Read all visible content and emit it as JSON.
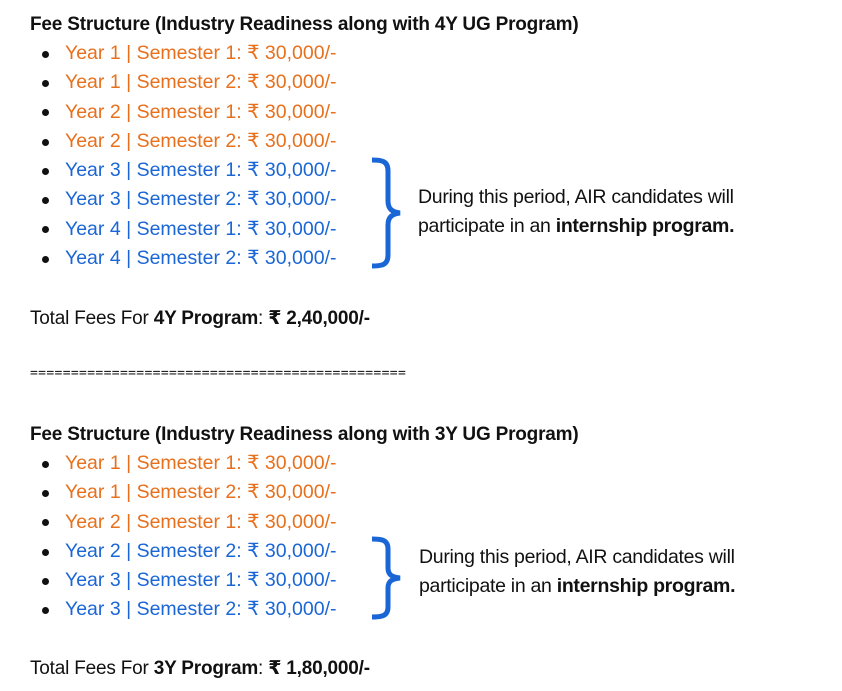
{
  "section1": {
    "title": "Fee Structure (Industry Readiness along with 4Y UG Program)",
    "items": [
      {
        "label": "Year 1 | Semester 1:  ₹ 30,000/-",
        "color": "orange"
      },
      {
        "label": "Year 1 | Semester 2:  ₹ 30,000/-",
        "color": "orange"
      },
      {
        "label": "Year 2 | Semester 1:  ₹ 30,000/-",
        "color": "orange"
      },
      {
        "label": "Year 2 | Semester 2:  ₹ 30,000/-",
        "color": "orange"
      },
      {
        "label": "Year 3 | Semester 1:  ₹ 30,000/-",
        "color": "blue"
      },
      {
        "label": "Year 3 | Semester 2:  ₹ 30,000/-",
        "color": "blue"
      },
      {
        "label": "Year 4 | Semester 1:  ₹ 30,000/-",
        "color": "blue"
      },
      {
        "label": "Year 4 | Semester 2:  ₹ 30,000/-",
        "color": "blue"
      }
    ],
    "note_line1": "During this period, AIR candidates will",
    "note_line2_prefix": "participate in an ",
    "note_line2_bold": "internship program.",
    "total_prefix": "Total Fees For ",
    "total_program": "4Y Program",
    "total_colon": ": ",
    "total_amount": "₹ 2,40,000/-"
  },
  "divider": "==============================================",
  "section2": {
    "title": "Fee Structure (Industry Readiness along with 3Y UG Program)",
    "items": [
      {
        "label": "Year 1 | Semester 1:  ₹ 30,000/-",
        "color": "orange"
      },
      {
        "label": "Year 1 | Semester 2:  ₹ 30,000/-",
        "color": "orange"
      },
      {
        "label": "Year 2 | Semester 1:  ₹ 30,000/-",
        "color": "orange"
      },
      {
        "label": "Year 2 | Semester 2:  ₹ 30,000/-",
        "color": "blue"
      },
      {
        "label": "Year 3 | Semester 1:  ₹ 30,000/-",
        "color": "blue"
      },
      {
        "label": "Year 3 | Semester 2:  ₹ 30,000/-",
        "color": "blue"
      }
    ],
    "note_line1": "During this period, AIR candidates will",
    "note_line2_prefix": "participate in an ",
    "note_line2_bold": "internship program.",
    "total_prefix": "Total Fees For ",
    "total_program": "3Y Program",
    "total_colon": ": ",
    "total_amount": "₹ 1,80,000/-"
  },
  "colors": {
    "orange": "#e8701c",
    "blue": "#1a66d6",
    "text": "#111111"
  },
  "icons": {
    "bullet": "bullet-dot-icon",
    "brace": "right-curly-brace-icon"
  }
}
